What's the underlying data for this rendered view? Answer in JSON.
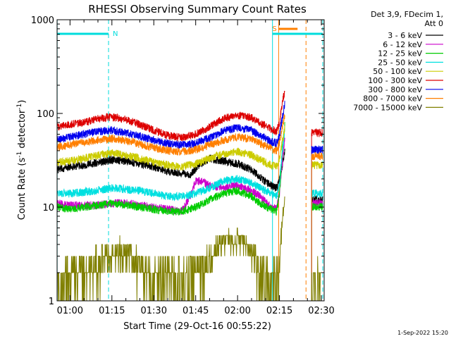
{
  "chart_data": {
    "type": "line",
    "title": "RHESSI Observing Summary Count Rates",
    "xlabel": "Start Time (29-Oct-16 00:55:22)",
    "ylabel_main": "Count Rate (s",
    "ylabel_sup1": "-1",
    "ylabel_mid": " detector",
    "ylabel_sup2": "-1",
    "ylabel_end": ")",
    "yscale": "log",
    "xlim_minutes": [
      55.37,
      151.0
    ],
    "ylim": [
      1,
      1000
    ],
    "x_ticks": [
      {
        "value": 60,
        "label": "01:00"
      },
      {
        "value": 75,
        "label": "01:15"
      },
      {
        "value": 90,
        "label": "01:30"
      },
      {
        "value": 105,
        "label": "01:45"
      },
      {
        "value": 120,
        "label": "02:00"
      },
      {
        "value": 135,
        "label": "02:15"
      },
      {
        "value": 150,
        "label": "02:30"
      }
    ],
    "y_ticks": [
      {
        "value": 1,
        "label": "1"
      },
      {
        "value": 10,
        "label": "10"
      },
      {
        "value": 100,
        "label": "100"
      },
      {
        "value": 1000,
        "label": "1000"
      }
    ],
    "legend_header": [
      "Det 3,9, FDecim 1,",
      "Att 0"
    ],
    "series": [
      {
        "name": "3 - 6 keV",
        "color": "#000000",
        "x": [
          55.4,
          60,
          65,
          70,
          75,
          80,
          85,
          90,
          95,
          100,
          103,
          106,
          110,
          115,
          120,
          125,
          128,
          132,
          134,
          135,
          136,
          137
        ],
        "values": [
          25,
          27,
          28,
          30,
          32,
          31,
          29,
          27,
          24,
          23,
          22,
          28,
          33,
          31,
          29,
          25,
          21,
          17,
          16,
          20,
          28,
          40
        ]
      },
      {
        "name": "6 - 12 keV",
        "color": "#cc00cc",
        "x": [
          55.4,
          60,
          65,
          70,
          75,
          80,
          85,
          90,
          95,
          100,
          103,
          105,
          107,
          110,
          115,
          120,
          125,
          128,
          132,
          134,
          135,
          136,
          137
        ],
        "values": [
          11,
          10.5,
          10.5,
          10.5,
          11,
          11,
          10.5,
          10,
          9.5,
          9,
          13,
          19,
          19,
          17,
          16,
          17,
          15,
          13,
          10,
          9.5,
          14,
          30,
          60
        ]
      },
      {
        "name": "12 - 25 keV",
        "color": "#00cc00",
        "x": [
          55.4,
          60,
          65,
          70,
          75,
          80,
          85,
          90,
          95,
          100,
          105,
          110,
          115,
          120,
          125,
          128,
          132,
          134,
          135,
          136,
          137
        ],
        "values": [
          10,
          9.5,
          10,
          10.5,
          11,
          10.5,
          10,
          9.5,
          9,
          9,
          10,
          12,
          14,
          15,
          13,
          11,
          9.5,
          9,
          14,
          40,
          80
        ]
      },
      {
        "name": "25 - 50 keV",
        "color": "#00e0e0",
        "x": [
          55.4,
          60,
          65,
          70,
          75,
          80,
          85,
          90,
          95,
          100,
          105,
          110,
          115,
          120,
          125,
          128,
          132,
          134,
          135,
          136,
          137
        ],
        "values": [
          14,
          14,
          14.5,
          15,
          16,
          15.5,
          15,
          14,
          13,
          13,
          14,
          16,
          19,
          20,
          18,
          16,
          14,
          13,
          18,
          40,
          70
        ]
      },
      {
        "name": "50 - 100 keV",
        "color": "#cccc00",
        "x": [
          55.4,
          60,
          65,
          70,
          75,
          80,
          85,
          90,
          95,
          100,
          105,
          110,
          115,
          120,
          125,
          128,
          132,
          134,
          135,
          136,
          137
        ],
        "values": [
          30,
          31,
          33,
          36,
          38,
          36,
          33,
          30,
          28,
          27,
          29,
          33,
          37,
          39,
          36,
          32,
          28,
          27,
          33,
          50,
          70
        ]
      },
      {
        "name": "100 - 300 keV",
        "color": "#dd0000",
        "x": [
          55.4,
          60,
          65,
          70,
          75,
          80,
          85,
          90,
          95,
          100,
          105,
          110,
          115,
          120,
          125,
          128,
          132,
          134,
          135,
          136,
          137
        ],
        "values": [
          72,
          76,
          80,
          88,
          92,
          86,
          76,
          66,
          58,
          55,
          60,
          72,
          88,
          96,
          90,
          80,
          68,
          64,
          80,
          130,
          180
        ]
      },
      {
        "name": "300 - 800 keV",
        "color": "#0000ee",
        "x": [
          55.4,
          60,
          65,
          70,
          75,
          80,
          85,
          90,
          95,
          100,
          105,
          110,
          115,
          120,
          125,
          128,
          132,
          134,
          135,
          136,
          137
        ],
        "values": [
          52,
          56,
          60,
          64,
          66,
          62,
          57,
          52,
          48,
          46,
          48,
          55,
          65,
          70,
          66,
          58,
          50,
          48,
          58,
          90,
          130
        ]
      },
      {
        "name": "800 - 7000 keV",
        "color": "#ff7f00",
        "x": [
          55.4,
          60,
          65,
          70,
          75,
          80,
          85,
          90,
          95,
          100,
          105,
          110,
          115,
          120,
          125,
          128,
          132,
          134,
          135,
          136,
          137
        ],
        "values": [
          44,
          46,
          49,
          52,
          54,
          51,
          47,
          43,
          40,
          39,
          41,
          46,
          52,
          56,
          53,
          48,
          42,
          40,
          48,
          70,
          100
        ]
      },
      {
        "name": "7000 - 15000 keV",
        "color": "#808000",
        "x": [
          55.4,
          60,
          65,
          70,
          75,
          78,
          80,
          85,
          90,
          95,
          100,
          105,
          110,
          113,
          115,
          118,
          120,
          122,
          125,
          128,
          132,
          134,
          135,
          136,
          137
        ],
        "values": [
          1.6,
          1.8,
          2.2,
          2.6,
          3.0,
          3.5,
          3.0,
          2.4,
          2.0,
          1.8,
          1.7,
          2.0,
          2.8,
          3.6,
          4.4,
          4.4,
          4.6,
          4.0,
          3.0,
          2.2,
          1.8,
          1.6,
          2.5,
          8,
          12
        ]
      }
    ],
    "second_segment": {
      "x_start": 146.5,
      "x_end": 150.5,
      "values": {
        "3 - 6 keV": 12,
        "6 - 12 keV": 11,
        "12 - 25 keV": 10,
        "25 - 50 keV": 14,
        "50 - 100 keV": 28,
        "100 - 300 keV": 62,
        "300 - 800 keV": 41,
        "800 - 7000 keV": 35,
        "7000 - 15000 keV": 1.5
      }
    },
    "annotations": {
      "night_label": "N",
      "saa_label": "S",
      "night_bars": [
        [
          55.4,
          73.8
        ],
        [
          132.5,
          150.5
        ]
      ],
      "night_start_lines": [
        73.8,
        150.5
      ],
      "night_end_lines": [
        55.4,
        132.5
      ],
      "saa_bar": [
        134.7,
        144.5
      ],
      "saa_start_lines": [
        134.7
      ],
      "saa_end_lines": [
        144.5
      ],
      "cyan_color": "#00dddd",
      "orange_color": "#ff7f00"
    },
    "footer_date": "1-Sep-2022 15:20"
  }
}
